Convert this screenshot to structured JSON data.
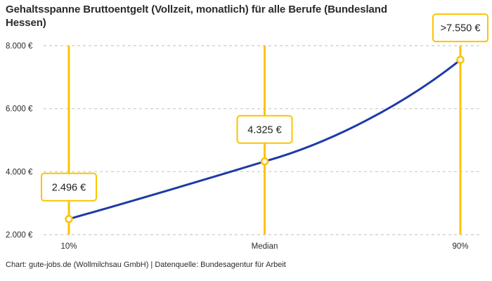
{
  "title": "Gehaltsspanne Bruttoentgelt (Vollzeit, monatlich) für alle Berufe (Bundesland Hessen)",
  "footer": "Chart: gute-jobs.de (Wollmilchsau GmbH) | Datenquelle: Bundesagentur für Arbeit",
  "chart_data": {
    "type": "line",
    "title": "Gehaltsspanne Bruttoentgelt (Vollzeit, monatlich) für alle Berufe (Bundesland Hessen)",
    "categories": [
      "10%",
      "Median",
      "90%"
    ],
    "values": [
      2496,
      4325,
      7550
    ],
    "value_labels": [
      "2.496 €",
      "4.325 €",
      ">7.550 €"
    ],
    "xlabel": "",
    "ylabel": "",
    "ylim": [
      2000,
      8000
    ],
    "yticks": [
      2000,
      4000,
      6000,
      8000
    ],
    "ytick_labels": [
      "2.000 €",
      "4.000 €",
      "6.000 €",
      "8.000 €"
    ],
    "grid": "horizontal-dashed",
    "legend": "none",
    "colors": {
      "line": "#1e3ba6",
      "accent": "#fdc300",
      "grid": "#c9c9c9",
      "text": "#2b2b2b",
      "label_text": "#1f1f1f",
      "marker_fill": "#ffffff"
    }
  }
}
